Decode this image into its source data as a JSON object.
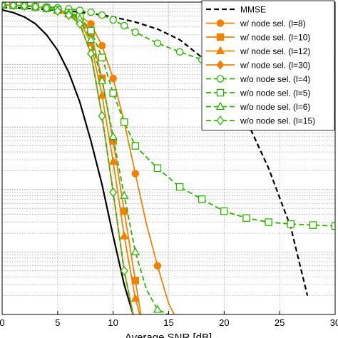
{
  "chart_data": {
    "type": "line",
    "xlabel": "Average SNR [dB]",
    "x_ticks": [
      0,
      5,
      10,
      15,
      20,
      25,
      30
    ],
    "xlim": [
      0,
      30
    ],
    "y_scale": "log",
    "ylim": [
      1e-05,
      1
    ],
    "grid": true,
    "legend_placement": "top-right",
    "series": [
      {
        "name": "",
        "color": "#000000",
        "dash": "solid",
        "marker": "none",
        "x": [
          0,
          1,
          2,
          3,
          4,
          5,
          6,
          7,
          8,
          9,
          10,
          11,
          11.8
        ],
        "y": [
          0.75,
          0.68,
          0.58,
          0.45,
          0.3,
          0.17,
          0.075,
          0.025,
          0.006,
          0.0012,
          0.00018,
          3e-05,
          1e-05
        ]
      },
      {
        "name": "MMSE",
        "color": "#000000",
        "dash": "dashed",
        "marker": "none",
        "x": [
          0,
          2,
          4,
          6,
          8,
          10,
          12,
          14,
          16,
          18,
          20,
          22,
          24,
          26,
          27.5
        ],
        "y": [
          0.82,
          0.8,
          0.76,
          0.72,
          0.66,
          0.58,
          0.48,
          0.37,
          0.25,
          0.13,
          0.05,
          0.013,
          0.0022,
          0.00025,
          2e-05
        ]
      },
      {
        "name": "w/ node sel. (l=8)",
        "color": "#F08200",
        "dash": "solid",
        "marker": "circle-filled",
        "x": [
          0,
          1,
          2,
          3,
          4,
          5,
          6,
          7,
          8,
          9,
          10,
          11,
          12,
          13,
          14,
          15,
          15.5
        ],
        "y": [
          0.9,
          0.89,
          0.87,
          0.84,
          0.8,
          0.75,
          0.68,
          0.6,
          0.45,
          0.2,
          0.06,
          0.012,
          0.0018,
          0.00028,
          6e-05,
          1.5e-05,
          1e-05
        ]
      },
      {
        "name": "w/ node sel. (l=10)",
        "color": "#F08200",
        "dash": "solid",
        "marker": "square-filled",
        "x": [
          0,
          1,
          2,
          3,
          4,
          5,
          6,
          7,
          8,
          9,
          10,
          11,
          12,
          12.5
        ],
        "y": [
          0.9,
          0.89,
          0.87,
          0.84,
          0.8,
          0.74,
          0.66,
          0.55,
          0.32,
          0.06,
          0.006,
          0.00045,
          3.5e-05,
          1e-05
        ]
      },
      {
        "name": "w/ node sel. (l=12)",
        "color": "#F08200",
        "dash": "solid",
        "marker": "triangle-filled",
        "x": [
          0,
          1,
          2,
          3,
          4,
          5,
          6,
          7,
          8,
          9,
          10,
          11,
          12,
          12.4
        ],
        "y": [
          0.9,
          0.89,
          0.87,
          0.84,
          0.8,
          0.73,
          0.64,
          0.5,
          0.22,
          0.032,
          0.0028,
          0.00018,
          1.8e-05,
          1e-05
        ]
      },
      {
        "name": "w/ node sel. (l=30)",
        "color": "#F08200",
        "dash": "solid",
        "marker": "diamond-filled",
        "x": [
          0,
          1,
          2,
          3,
          4,
          5,
          6,
          7,
          8,
          9,
          10,
          11,
          11.8
        ],
        "y": [
          0.9,
          0.89,
          0.87,
          0.84,
          0.8,
          0.72,
          0.62,
          0.45,
          0.15,
          0.015,
          0.0009,
          5e-05,
          1e-05
        ]
      },
      {
        "name": "w/o node sel. (l=4)",
        "color": "#2DB400",
        "dash": "dashed",
        "marker": "circle-open",
        "x": [
          0,
          1,
          2,
          3,
          4,
          5,
          6,
          7,
          8,
          9,
          10,
          11,
          12,
          14,
          16,
          18,
          20,
          22,
          24,
          26,
          28,
          30
        ],
        "y": [
          0.9,
          0.89,
          0.88,
          0.86,
          0.84,
          0.81,
          0.78,
          0.74,
          0.69,
          0.62,
          0.52,
          0.42,
          0.33,
          0.22,
          0.16,
          0.12,
          0.1,
          0.09,
          0.085,
          0.082,
          0.08,
          0.078
        ]
      },
      {
        "name": "w/o node sel. (l=5)",
        "color": "#2DB400",
        "dash": "dashed",
        "marker": "square-open",
        "x": [
          0,
          1,
          2,
          3,
          4,
          5,
          6,
          7,
          8,
          9,
          10,
          11,
          12,
          14,
          16,
          18,
          20,
          22,
          24,
          26,
          28,
          30
        ],
        "y": [
          0.9,
          0.89,
          0.87,
          0.84,
          0.8,
          0.75,
          0.68,
          0.58,
          0.35,
          0.13,
          0.035,
          0.012,
          0.005,
          0.0022,
          0.0011,
          0.0007,
          0.00045,
          0.00035,
          0.0003,
          0.00028,
          0.00027,
          0.00026
        ]
      },
      {
        "name": "w/o node sel. (l=6)",
        "color": "#2DB400",
        "dash": "dashed",
        "marker": "triangle-open",
        "x": [
          0,
          1,
          2,
          3,
          4,
          5,
          6,
          7,
          8,
          9,
          10,
          11,
          12,
          13,
          14,
          15
        ],
        "y": [
          0.9,
          0.89,
          0.87,
          0.84,
          0.8,
          0.74,
          0.66,
          0.54,
          0.25,
          0.055,
          0.007,
          0.0008,
          0.0001,
          2.5e-05,
          1.2e-05,
          1e-05
        ]
      },
      {
        "name": "w/o node sel. (l=15)",
        "color": "#2DB400",
        "dash": "dashed",
        "marker": "diamond-open",
        "x": [
          0,
          1,
          2,
          3,
          4,
          5,
          6,
          7,
          8,
          9,
          10,
          11,
          11.8
        ],
        "y": [
          0.9,
          0.89,
          0.87,
          0.84,
          0.8,
          0.72,
          0.62,
          0.45,
          0.15,
          0.015,
          0.0009,
          5e-05,
          1e-05
        ]
      }
    ]
  }
}
